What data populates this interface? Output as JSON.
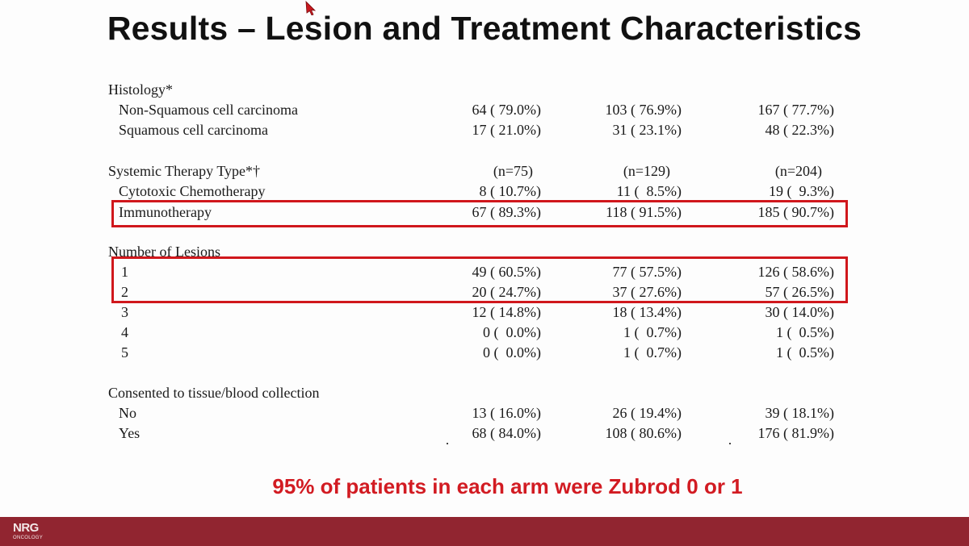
{
  "slide": {
    "title": "Results – Lesion and Treatment Characteristics",
    "summary": "95% of patients in each arm were Zubrod 0 or 1"
  },
  "logo": {
    "main": "NRG",
    "sub": "ONCOLOGY"
  },
  "colors": {
    "highlight": "#d0171c",
    "footer": "#912530",
    "summary_text": "#d21b22"
  },
  "table": {
    "sections": [
      {
        "heading": "Histology*",
        "counts": [
          "",
          "",
          ""
        ],
        "rows": [
          {
            "label": "Non-Squamous cell carcinoma",
            "values": [
              "64 ( 79.0%)",
              "103 ( 76.9%)",
              "167 ( 77.7%)"
            ]
          },
          {
            "label": "Squamous cell carcinoma",
            "values": [
              "17 ( 21.0%)",
              "31 ( 23.1%)",
              "48 ( 22.3%)"
            ]
          }
        ]
      },
      {
        "heading": "Systemic Therapy Type*†",
        "counts": [
          "(n=75)",
          "(n=129)",
          "(n=204)"
        ],
        "rows": [
          {
            "label": "Cytotoxic Chemotherapy",
            "values": [
              "8 ( 10.7%)",
              "11 (  8.5%)",
              "19 (  9.3%)"
            ]
          },
          {
            "label": "Immunotherapy",
            "values": [
              "67 ( 89.3%)",
              "118 ( 91.5%)",
              "185 ( 90.7%)"
            ]
          }
        ]
      },
      {
        "heading": "Number of Lesions",
        "counts": [
          "",
          "",
          ""
        ],
        "rows": [
          {
            "label": "1",
            "values": [
              "49 ( 60.5%)",
              "77 ( 57.5%)",
              "126 ( 58.6%)"
            ]
          },
          {
            "label": "2",
            "values": [
              "20 ( 24.7%)",
              "37 ( 27.6%)",
              "57 ( 26.5%)"
            ]
          },
          {
            "label": "3",
            "values": [
              "12 ( 14.8%)",
              "18 ( 13.4%)",
              "30 ( 14.0%)"
            ]
          },
          {
            "label": "4",
            "values": [
              "0 (  0.0%)",
              "1 (  0.7%)",
              "1 (  0.5%)"
            ]
          },
          {
            "label": "5",
            "values": [
              "0 (  0.0%)",
              "1 (  0.7%)",
              "1 (  0.5%)"
            ]
          }
        ]
      },
      {
        "heading": "Consented to tissue/blood collection",
        "counts": [
          "",
          "",
          ""
        ],
        "rows": [
          {
            "label": "No",
            "values": [
              "13 ( 16.0%)",
              "26 ( 19.4%)",
              "39 ( 18.1%)"
            ]
          },
          {
            "label": "Yes",
            "values": [
              "68 ( 84.0%)",
              "108 ( 80.6%)",
              "176 ( 81.9%)"
            ]
          }
        ]
      }
    ]
  }
}
